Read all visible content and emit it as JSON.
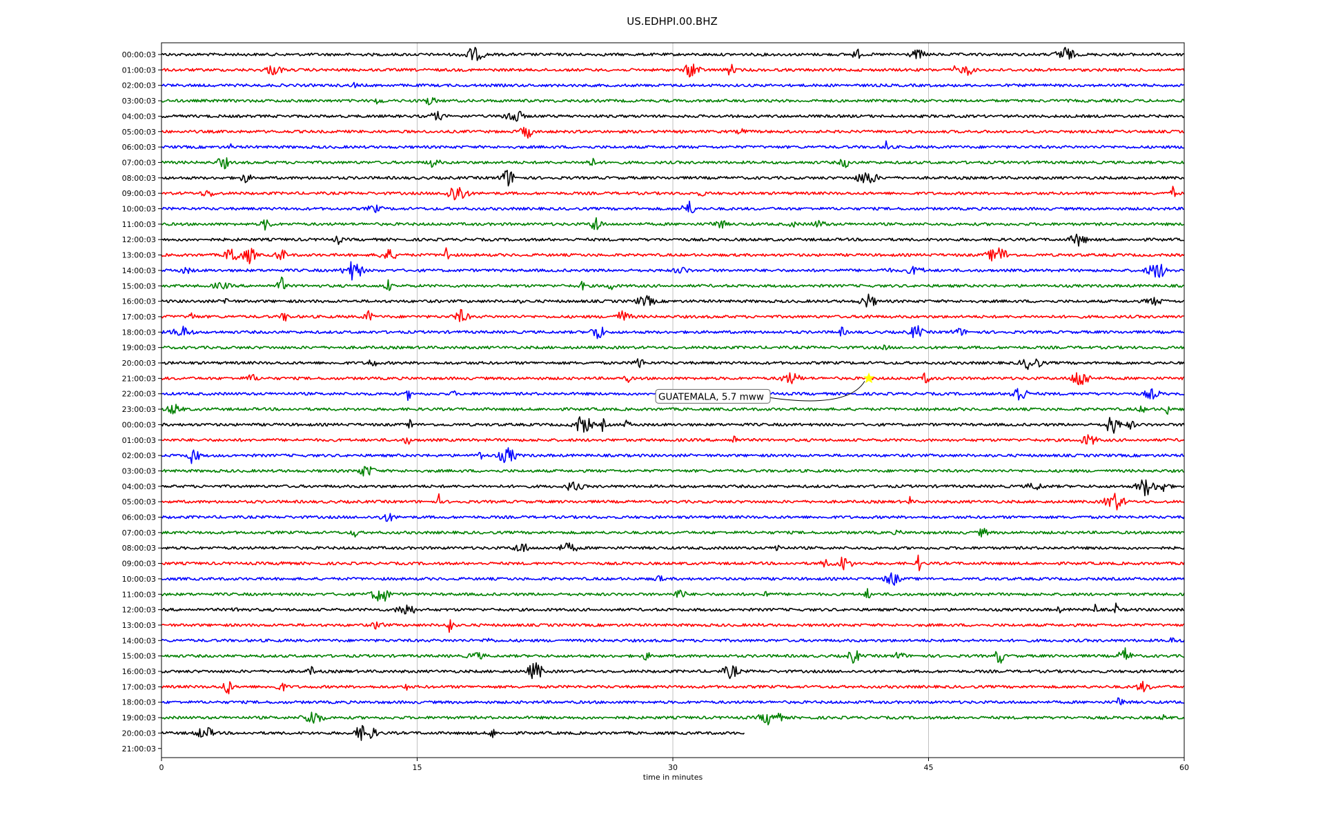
{
  "chart_data": {
    "type": "line",
    "title": "US.EDHPI.00.BHZ",
    "xlabel": "time in minutes",
    "ylabel": "",
    "xlim": [
      0,
      60
    ],
    "x_ticks": [
      0,
      15,
      30,
      45,
      60
    ],
    "grid": "vertical",
    "row_labels": [
      "00:00:03",
      "01:00:03",
      "02:00:03",
      "03:00:03",
      "04:00:03",
      "05:00:03",
      "06:00:03",
      "07:00:03",
      "08:00:03",
      "09:00:03",
      "10:00:03",
      "11:00:03",
      "12:00:03",
      "13:00:03",
      "14:00:03",
      "15:00:03",
      "16:00:03",
      "17:00:03",
      "18:00:03",
      "19:00:03",
      "20:00:03",
      "21:00:03",
      "22:00:03",
      "23:00:03",
      "00:00:03",
      "01:00:03",
      "02:00:03",
      "03:00:03",
      "04:00:03",
      "05:00:03",
      "06:00:03",
      "07:00:03",
      "08:00:03",
      "09:00:03",
      "10:00:03",
      "11:00:03",
      "12:00:03",
      "13:00:03",
      "14:00:03",
      "15:00:03",
      "16:00:03",
      "17:00:03",
      "18:00:03",
      "19:00:03",
      "20:00:03",
      "21:00:03"
    ],
    "trace_colors": [
      "#000000",
      "#ff0000",
      "#0000ff",
      "#008000"
    ],
    "last_trace_end_minute": 34.2,
    "annotation": {
      "text": "GUATEMALA, 5.7 mww",
      "row_index": 21,
      "minute": 41.5,
      "marker": "star",
      "marker_color": "#ffff00"
    }
  }
}
